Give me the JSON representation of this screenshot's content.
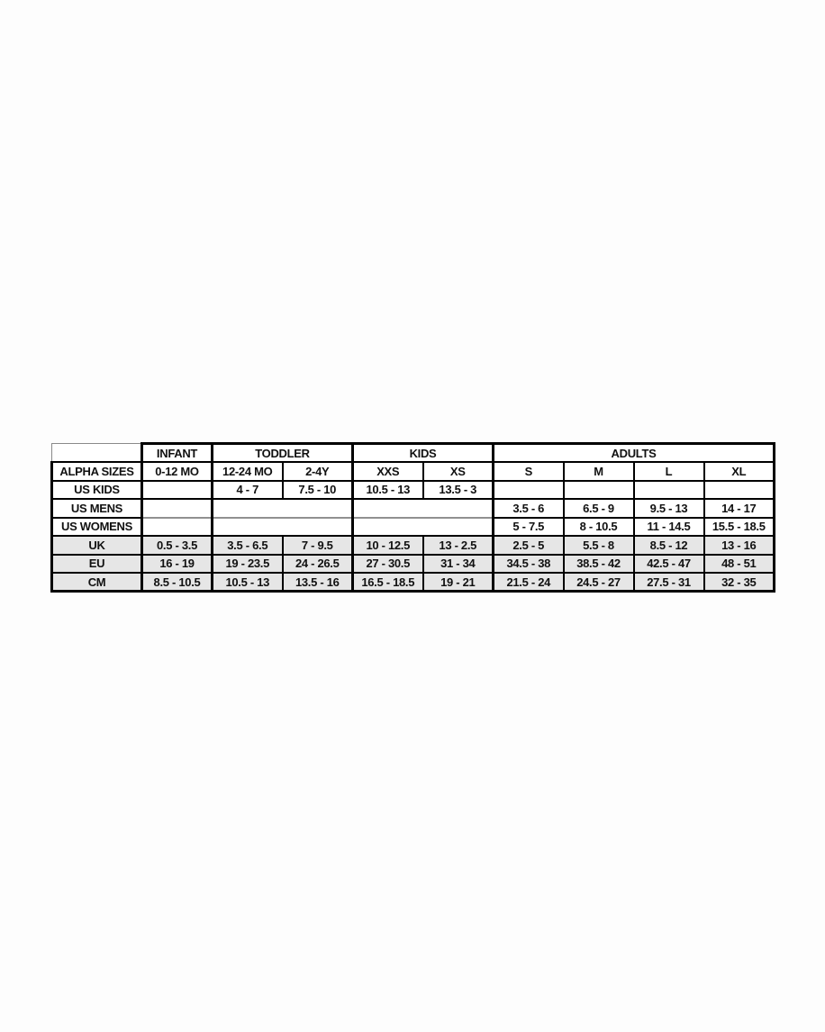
{
  "colors": {
    "page_background": "#fdfdfd",
    "stripe": "#e6e6e6",
    "grid": "#000000",
    "light_divider": "#909090",
    "text": "#111111"
  },
  "chart_data": {
    "type": "table",
    "corner_label": "",
    "age_groups": [
      {
        "label": "INFANT",
        "colspan": 1
      },
      {
        "label": "TODDLER",
        "colspan": 2
      },
      {
        "label": "KIDS",
        "colspan": 2
      },
      {
        "label": "ADULTS",
        "colspan": 4
      }
    ],
    "alpha_sizes": {
      "label": "ALPHA SIZES",
      "values": [
        "0-12 MO",
        "12-24 MO",
        "2-4Y",
        "XXS",
        "XS",
        "S",
        "M",
        "L",
        "XL"
      ]
    },
    "rows": [
      {
        "label": "US KIDS",
        "values": [
          "",
          "4 - 7",
          "7.5 - 10",
          "10.5 - 13",
          "13.5 - 3",
          "",
          "",
          "",
          ""
        ]
      },
      {
        "label": "US MENS",
        "values": [
          "",
          "",
          "",
          "",
          "",
          "3.5 - 6",
          "6.5 - 9",
          "9.5 - 13",
          "14 - 17"
        ]
      },
      {
        "label": "US WOMENS",
        "values": [
          "",
          "",
          "",
          "",
          "",
          "5 - 7.5",
          "8 - 10.5",
          "11 - 14.5",
          "15.5 - 18.5"
        ]
      },
      {
        "label": "UK",
        "values": [
          "0.5 - 3.5",
          "3.5 - 6.5",
          "7 - 9.5",
          "10 - 12.5",
          "13 - 2.5",
          "2.5 - 5",
          "5.5 - 8",
          "8.5 - 12",
          "13 - 16"
        ]
      },
      {
        "label": "EU",
        "values": [
          "16 - 19",
          "19 - 23.5",
          "24 - 26.5",
          "27 - 30.5",
          "31 - 34",
          "34.5 - 38",
          "38.5 - 42",
          "42.5 - 47",
          "48 - 51"
        ]
      },
      {
        "label": "CM",
        "values": [
          "8.5 - 10.5",
          "10.5 - 13",
          "13.5 - 16",
          "16.5 - 18.5",
          "19 - 21",
          "21.5 - 24",
          "24.5 - 27",
          "27.5 - 31",
          "32 - 35"
        ]
      }
    ]
  }
}
